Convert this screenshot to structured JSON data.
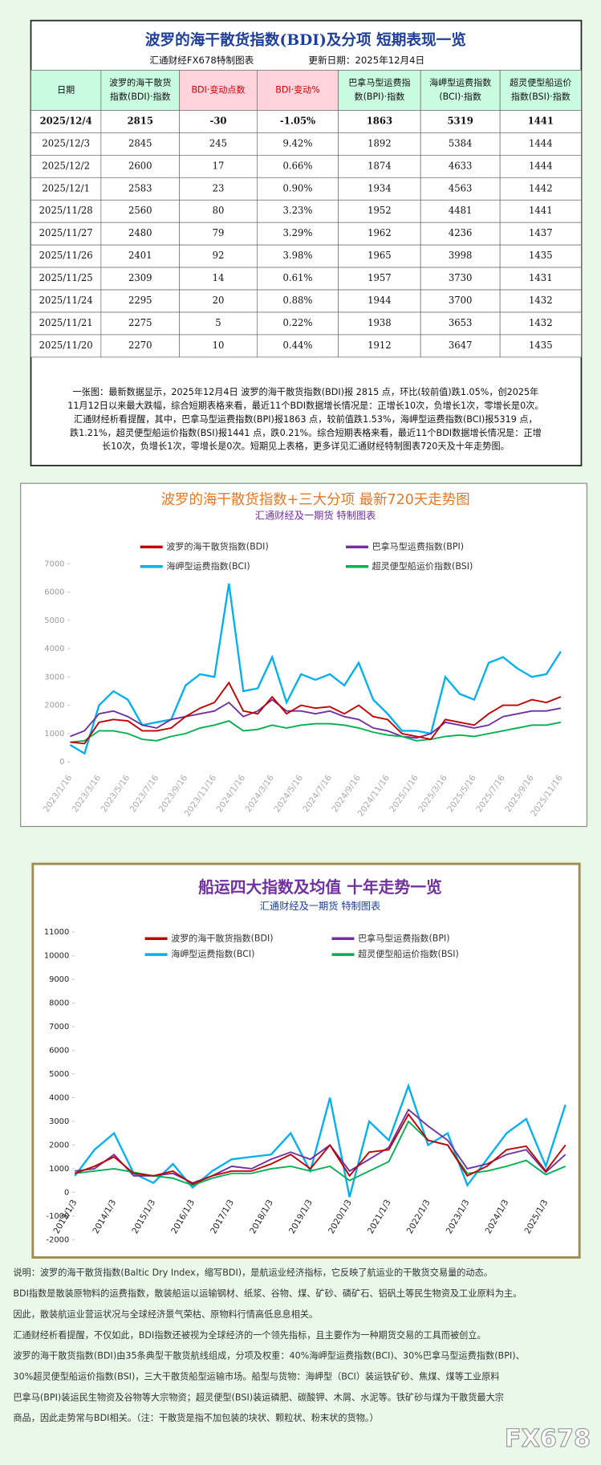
{
  "header": {
    "title": "波罗的海干散货指数(BDI)及分项  短期表现一览",
    "source": "汇通财经FX678特制图表",
    "update": "更新日期：2025年12月4日"
  },
  "table": {
    "columns": [
      [
        "日期"
      ],
      [
        "波罗的海干散货",
        "指数(BDI)·指数"
      ],
      [
        "BDI·变动点数"
      ],
      [
        "BDI·变动%"
      ],
      [
        "巴拿马型运费指",
        "数(BPI)·指数"
      ],
      [
        "海岬型运费指数",
        "(BCI)·指数"
      ],
      [
        "超灵便型船运价",
        "指数(BSI)·指数"
      ]
    ],
    "rows": [
      [
        "2025/12/4",
        "2815",
        "-30",
        "-1.05%",
        "1863",
        "5319",
        "1441"
      ],
      [
        "2025/12/3",
        "2845",
        "245",
        "9.42%",
        "1892",
        "5384",
        "1444"
      ],
      [
        "2025/12/2",
        "2600",
        "17",
        "0.66%",
        "1874",
        "4633",
        "1444"
      ],
      [
        "2025/12/1",
        "2583",
        "23",
        "0.90%",
        "1934",
        "4563",
        "1442"
      ],
      [
        "2025/11/28",
        "2560",
        "80",
        "3.23%",
        "1952",
        "4481",
        "1441"
      ],
      [
        "2025/11/27",
        "2480",
        "79",
        "3.29%",
        "1962",
        "4236",
        "1437"
      ],
      [
        "2025/11/26",
        "2401",
        "92",
        "3.98%",
        "1965",
        "3998",
        "1435"
      ],
      [
        "2025/11/25",
        "2309",
        "14",
        "0.61%",
        "1957",
        "3730",
        "1431"
      ],
      [
        "2025/11/24",
        "2295",
        "20",
        "0.88%",
        "1944",
        "3700",
        "1432"
      ],
      [
        "2025/11/21",
        "2275",
        "5",
        "0.22%",
        "1938",
        "3653",
        "1432"
      ],
      [
        "2025/11/20",
        "2270",
        "10",
        "0.44%",
        "1912",
        "3647",
        "1435"
      ]
    ]
  },
  "summary": {
    "lines": [
      "一张图：最新数据显示，2025年12月4日 波罗的海干散货指数(BDI)报 2815 点，环比(较前值)跌1.05%，创2025年",
      "11月12日以来最大跌幅，综合短期表格来看，最近11个BDI数据增长情况是：正增长10次，负增长1次，零增长是0次。",
      "汇通财经析看提醒，其中，巴拿马型运费指数(BPI)报1863 点，较前值跌1.53%，海岬型运费指数(BCI)报5319 点，",
      "跌1.21%，超灵便型船运价指数(BSI)报1441 点，跌0.21%。综合短期表格来看，最近11个BDI数据增长情况是：正增",
      "长10次，负增长1次，零增长是0次。短期见上表格，更多详见汇通财经特制图表720天及十年走势图。"
    ]
  },
  "chart_data": [
    {
      "type": "line",
      "title": "波罗的海干散货指数+三大分项  最新720天走势图",
      "subtitle": "汇通财经及一期货  特制图表",
      "x": [
        "2023/1/16",
        "2023/2/16",
        "2023/3/16",
        "2023/4/16",
        "2023/5/16",
        "2023/6/16",
        "2023/7/16",
        "2023/8/16",
        "2023/9/16",
        "2023/10/16",
        "2023/11/16",
        "2023/12/16",
        "2024/1/16",
        "2024/2/16",
        "2024/3/16",
        "2024/4/16",
        "2024/5/16",
        "2024/6/16",
        "2024/7/16",
        "2024/8/16",
        "2024/9/16",
        "2024/10/16",
        "2024/11/16",
        "2024/12/16",
        "2025/1/16",
        "2025/2/16",
        "2025/3/16",
        "2025/4/16",
        "2025/5/16",
        "2025/6/16",
        "2025/7/16",
        "2025/8/16",
        "2025/9/16",
        "2025/10/16",
        "2025/11/16"
      ],
      "series": [
        {
          "name": "波罗的海干散货指数(BDI)",
          "color": "#c00000",
          "values": [
            700,
            650,
            1400,
            1500,
            1450,
            1100,
            1100,
            1200,
            1600,
            1900,
            2100,
            2800,
            1800,
            1700,
            2300,
            1700,
            2000,
            1900,
            1950,
            1700,
            2000,
            1600,
            1500,
            1000,
            900,
            800,
            1500,
            1400,
            1300,
            1700,
            2000,
            2000,
            2200,
            2100,
            2300
          ]
        },
        {
          "name": "巴拿马型运费指数(BPI)",
          "color": "#7030a0",
          "values": [
            900,
            1100,
            1700,
            1800,
            1600,
            1300,
            1200,
            1500,
            1600,
            1700,
            1800,
            2100,
            1600,
            1800,
            2200,
            1800,
            1800,
            1700,
            1800,
            1600,
            1500,
            1200,
            1100,
            900,
            850,
            1000,
            1400,
            1300,
            1200,
            1300,
            1600,
            1700,
            1800,
            1800,
            1900
          ]
        },
        {
          "name": "海岬型运费指数(BCI)",
          "color": "#00b0f0",
          "values": [
            600,
            300,
            2000,
            2500,
            2200,
            1300,
            1400,
            1500,
            2700,
            3100,
            3000,
            6300,
            2500,
            2600,
            3700,
            2100,
            3100,
            2900,
            3100,
            2700,
            3500,
            2200,
            1700,
            1100,
            1100,
            1000,
            3000,
            2400,
            2200,
            3500,
            3700,
            3300,
            3000,
            3100,
            3900
          ]
        },
        {
          "name": "超灵便型船运价指数(BSI)",
          "color": "#00b050",
          "values": [
            700,
            750,
            1100,
            1100,
            1000,
            800,
            750,
            900,
            1000,
            1200,
            1300,
            1450,
            1100,
            1150,
            1300,
            1200,
            1300,
            1350,
            1350,
            1300,
            1200,
            1050,
            950,
            900,
            750,
            800,
            900,
            950,
            900,
            1000,
            1100,
            1200,
            1300,
            1300,
            1400
          ]
        }
      ],
      "ylim": [
        0,
        7000
      ],
      "yticks": [
        0,
        1000,
        2000,
        3000,
        4000,
        5000,
        6000,
        7000
      ]
    },
    {
      "type": "line",
      "title": "船运四大指数及均值 十年走势一览",
      "subtitle": "汇通财经及一期货 特制图表",
      "x": [
        "2013/1/3",
        "2013/7/3",
        "2014/1/3",
        "2014/7/3",
        "2015/1/3",
        "2015/7/3",
        "2016/1/3",
        "2016/7/3",
        "2017/1/3",
        "2017/7/3",
        "2018/1/3",
        "2018/7/3",
        "2019/1/3",
        "2019/7/3",
        "2020/1/3",
        "2020/7/3",
        "2021/1/3",
        "2021/7/3",
        "2022/1/3",
        "2022/7/3",
        "2023/1/3",
        "2023/7/3",
        "2024/1/3",
        "2024/7/3",
        "2025/1/3",
        "2025/7/3"
      ],
      "series": [
        {
          "name": "波罗的海干散货指数(BDI)",
          "color": "#c00000",
          "values": [
            800,
            1100,
            1500,
            800,
            700,
            900,
            350,
            700,
            900,
            900,
            1200,
            1600,
            1000,
            2000,
            700,
            1700,
            1800,
            3300,
            2200,
            2000,
            700,
            1100,
            1800,
            1950,
            900,
            2000
          ]
        },
        {
          "name": "巴拿马型运费指数(BPI)",
          "color": "#7030a0",
          "values": [
            900,
            1000,
            1600,
            700,
            700,
            800,
            400,
            700,
            1100,
            1000,
            1400,
            1700,
            1400,
            2000,
            900,
            1400,
            1900,
            3500,
            2800,
            2200,
            1000,
            1200,
            1600,
            1800,
            850,
            1600
          ]
        },
        {
          "name": "海岬型运费指数(BCI)",
          "color": "#00b0f0",
          "values": [
            700,
            1800,
            2500,
            800,
            400,
            1200,
            200,
            900,
            1400,
            1500,
            1600,
            2500,
            900,
            4000,
            -200,
            3000,
            2200,
            4500,
            2000,
            2500,
            300,
            1400,
            2500,
            3100,
            1100,
            3700
          ]
        },
        {
          "name": "超灵便型船运价指数(BSI)",
          "color": "#00b050",
          "values": [
            800,
            900,
            1000,
            850,
            700,
            600,
            300,
            600,
            800,
            800,
            1000,
            1100,
            900,
            1100,
            500,
            900,
            1300,
            3000,
            2200,
            2000,
            800,
            900,
            1100,
            1350,
            750,
            1100
          ]
        }
      ],
      "ylim": [
        -2000,
        11000
      ],
      "yticks": [
        -2000,
        -1000,
        0,
        1000,
        2000,
        3000,
        4000,
        5000,
        6000,
        7000,
        8000,
        9000,
        10000,
        11000
      ]
    }
  ],
  "notes": {
    "lines": [
      "说明：波罗的海干散货指数(Baltic Dry Index，缩写BDI)，是航运业经济指标，它反映了航运业的干散货交易量的动态。",
      "BDI指数是散装原物料的运费指数，散装船运以运输钢材、纸浆、谷物、煤、矿砂、磷矿石、铝矾土等民生物资及工业原料为主。",
      "因此，散装航运业营运状况与全球经济景气荣枯、原物料行情高低息息相关。",
      "汇通财经析看提醒，不仅如此，BDI指数还被视为全球经济的一个领先指标，且主要作为一种期货交易的工具而被创立。",
      "波罗的海干散货指数(BDI)由35条典型干散货航线组成，分项及权重：40%海岬型运费指数(BCI)、30%巴拿马型运费指数(BPI)、",
      "30%超灵便型船运价指数(BSI)，三大干散货船型运输市场。船型与货物：海岬型（BCI）装运铁矿砂、焦煤、煤等工业原料",
      "巴拿马(BPI)装运民生物资及谷物等大宗物资；超灵便型(BSI)装运磷肥、碳酸钾、木屑、水泥等。铁矿砂与煤为干散货最大宗",
      "商品，因此走势常与BDI相关。（注：干散货是指不加包装的块状、颗粒状、粉末状的货物。）"
    ]
  },
  "footer": {
    "logo": "FX678"
  }
}
